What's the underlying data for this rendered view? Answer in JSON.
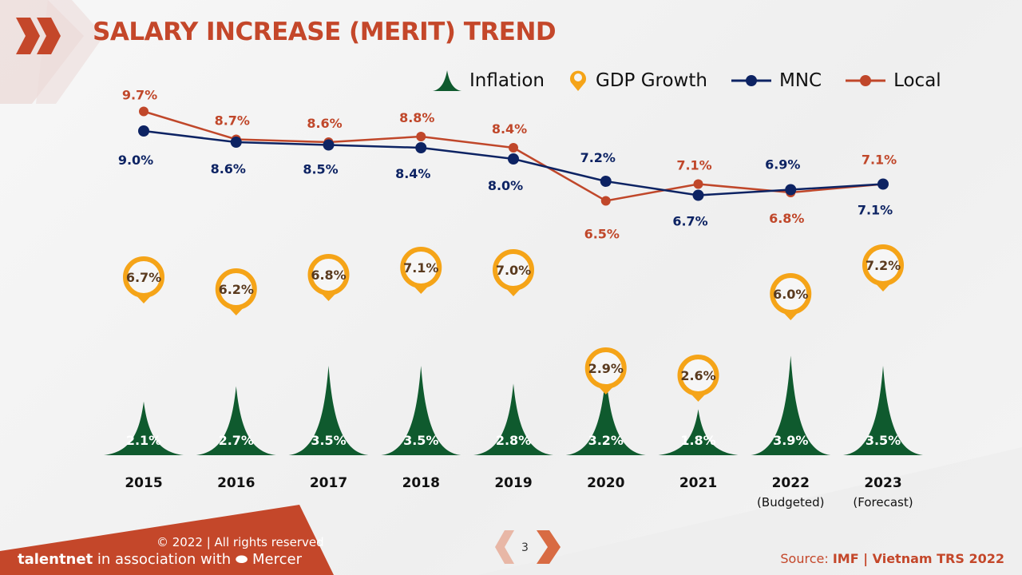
{
  "title": "SALARY INCREASE (MERIT) TREND",
  "legend": {
    "inflation": "Inflation",
    "gdp": "GDP Growth",
    "mnc": "MNC",
    "local": "Local"
  },
  "colors": {
    "inflation": "#0f5a2e",
    "gdp": "#f5a418",
    "mnc": "#0d2363",
    "local": "#c0472a",
    "title": "#c4472a"
  },
  "chart_data": {
    "type": "line",
    "categories": [
      "2015",
      "2016",
      "2017",
      "2018",
      "2019",
      "2020",
      "2021",
      "2022",
      "2023"
    ],
    "category_sublabels": [
      "",
      "",
      "",
      "",
      "",
      "",
      "",
      "(Budgeted)",
      "(Forecast)"
    ],
    "series": [
      {
        "name": "MNC",
        "type": "line",
        "values": [
          9.0,
          8.6,
          8.5,
          8.4,
          8.0,
          7.2,
          6.7,
          6.9,
          7.1
        ],
        "labels": [
          "9.0%",
          "8.6%",
          "8.5%",
          "8.4%",
          "8.0%",
          "7.2%",
          "6.7%",
          "6.9%",
          "7.1%"
        ]
      },
      {
        "name": "Local",
        "type": "line",
        "values": [
          9.7,
          8.7,
          8.6,
          8.8,
          8.4,
          6.5,
          7.1,
          6.8,
          7.1
        ],
        "labels": [
          "9.7%",
          "8.7%",
          "8.6%",
          "8.8%",
          "8.4%",
          "6.5%",
          "7.1%",
          "6.8%",
          "7.1%"
        ]
      },
      {
        "name": "GDP Growth",
        "type": "marker",
        "values": [
          6.7,
          6.2,
          6.8,
          7.1,
          7.0,
          2.9,
          2.6,
          6.0,
          7.2
        ],
        "labels": [
          "6.7%",
          "6.2%",
          "6.8%",
          "7.1%",
          "7.0%",
          "2.9%",
          "2.6%",
          "6.0%",
          "7.2%"
        ]
      },
      {
        "name": "Inflation",
        "type": "peak",
        "values": [
          2.1,
          2.7,
          3.5,
          3.5,
          2.8,
          3.2,
          1.8,
          3.9,
          3.5
        ],
        "labels": [
          "2.1%",
          "2.7%",
          "3.5%",
          "3.5%",
          "2.8%",
          "3.2%",
          "1.8%",
          "3.9%",
          "3.5%"
        ]
      }
    ],
    "legend_position": "top-right",
    "grid": false
  },
  "footer": {
    "copyright": "© 2022 | All rights reserved",
    "brand": "talentnet",
    "association": "in association with",
    "partner": "Mercer",
    "page": "3",
    "source_label": "Source: ",
    "source_value": "IMF | Vietnam TRS 2022"
  }
}
